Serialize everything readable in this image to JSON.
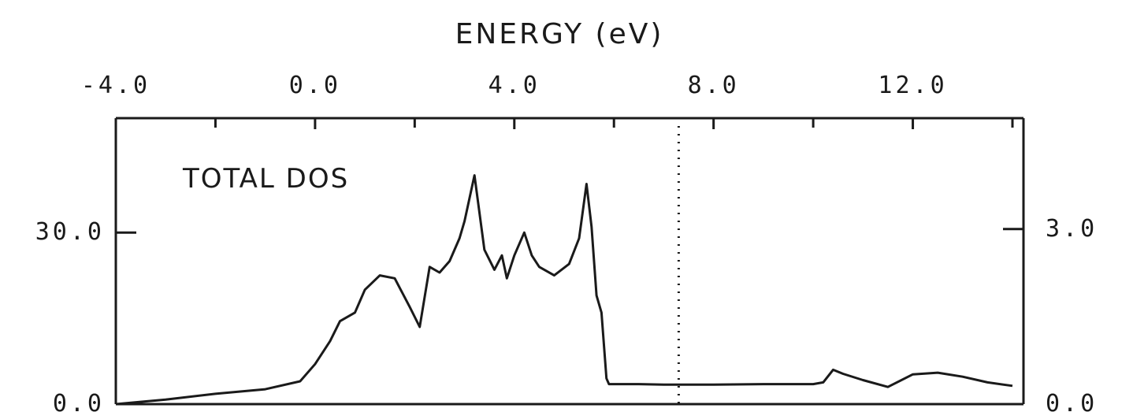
{
  "chart_data": {
    "type": "line",
    "title": "ENERGY (eV)",
    "annotation": "TOTAL DOS",
    "x_axis": {
      "label": "ENERGY (eV)",
      "position": "top",
      "range": [
        -4.0,
        14.0
      ],
      "tick_values": [
        -4.0,
        0.0,
        4.0,
        8.0,
        12.0
      ],
      "tick_labels": [
        "-4.0",
        "0.0",
        "4.0",
        "8.0",
        "12.0"
      ],
      "minor_tick_values": [
        -2.0,
        2.0,
        6.0,
        10.0,
        14.0
      ]
    },
    "y_left": {
      "range": [
        0,
        50
      ],
      "tick_values": [
        0.0,
        30.0
      ],
      "tick_labels": [
        "0.0",
        "30.0"
      ]
    },
    "y_right": {
      "range": [
        0,
        4.9
      ],
      "tick_values": [
        0.0,
        3.0
      ],
      "tick_labels": [
        "0.0",
        "3.0"
      ]
    },
    "fermi_level": 7.3,
    "grid": false,
    "series": [
      {
        "x": [
          -4.0,
          -3.0,
          -2.0,
          -1.0,
          -0.3,
          0.0,
          0.3,
          0.5,
          0.8,
          1.0,
          1.3,
          1.6,
          1.9,
          2.1,
          2.3,
          2.5,
          2.7,
          2.9,
          3.0,
          3.2,
          3.4,
          3.6,
          3.75,
          3.85,
          4.0,
          4.2,
          4.35,
          4.5,
          4.8,
          5.1,
          5.3,
          5.45,
          5.55,
          5.65,
          5.75,
          5.85,
          5.9,
          6.0,
          6.5,
          7.0,
          8.0,
          9.0,
          10.0,
          10.2,
          10.4,
          10.6,
          11.0,
          11.5,
          12.0,
          12.5,
          13.0,
          13.5,
          14.0
        ],
        "values": [
          0.0,
          0.8,
          1.8,
          2.6,
          4.0,
          7.0,
          11.0,
          14.5,
          16.0,
          20.0,
          22.5,
          22.0,
          17.0,
          13.5,
          24.0,
          23.0,
          25.0,
          29.0,
          32.0,
          40.0,
          27.0,
          23.5,
          26.0,
          22.0,
          26.0,
          30.0,
          26.0,
          24.0,
          22.5,
          24.5,
          29.0,
          38.5,
          31.0,
          19.0,
          16.0,
          4.5,
          3.5,
          3.5,
          3.5,
          3.4,
          3.4,
          3.5,
          3.5,
          3.8,
          6.0,
          5.3,
          4.2,
          3.0,
          5.2,
          5.5,
          4.8,
          3.8,
          3.2
        ]
      }
    ]
  }
}
